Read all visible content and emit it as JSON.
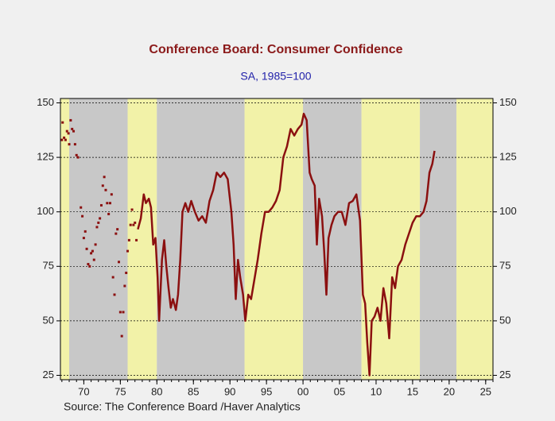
{
  "chart_data": {
    "type": "line",
    "title": "Conference Board: Consumer Confidence",
    "subtitle": "SA, 1985=100",
    "source": "Source:  The Conference Board /Haver Analytics",
    "xlim": [
      1966.8,
      2026
    ],
    "ylim": [
      23,
      152
    ],
    "xticks": [
      {
        "value": 1970,
        "label": "70"
      },
      {
        "value": 1975,
        "label": "75"
      },
      {
        "value": 1980,
        "label": "80"
      },
      {
        "value": 1985,
        "label": "85"
      },
      {
        "value": 1990,
        "label": "90"
      },
      {
        "value": 1995,
        "label": "95"
      },
      {
        "value": 2000,
        "label": "00"
      },
      {
        "value": 2005,
        "label": "05"
      },
      {
        "value": 2010,
        "label": "10"
      },
      {
        "value": 2015,
        "label": "15"
      },
      {
        "value": 2020,
        "label": "20"
      },
      {
        "value": 2025,
        "label": "25"
      }
    ],
    "yticks": [
      25,
      50,
      75,
      100,
      125,
      150
    ],
    "grid": true,
    "bands": [
      {
        "x0": 1966.8,
        "x1": 1968,
        "color": "#f2f2a8"
      },
      {
        "x0": 1968,
        "x1": 1976,
        "color": "#c8c8c8"
      },
      {
        "x0": 1976,
        "x1": 1980,
        "color": "#f2f2a8"
      },
      {
        "x0": 1980,
        "x1": 1992,
        "color": "#c8c8c8"
      },
      {
        "x0": 1992,
        "x1": 2000,
        "color": "#f2f2a8"
      },
      {
        "x0": 2000,
        "x1": 2008,
        "color": "#c8c8c8"
      },
      {
        "x0": 2008,
        "x1": 2016,
        "color": "#f2f2a8"
      },
      {
        "x0": 2016,
        "x1": 2021,
        "color": "#c8c8c8"
      },
      {
        "x0": 2021,
        "x1": 2026,
        "color": "#f2f2a8"
      }
    ],
    "series": [
      {
        "mode": "markers",
        "color": "#8b1010",
        "x": [
          1967.0,
          1967.1,
          1967.3,
          1967.5,
          1967.7,
          1967.9,
          1968.0,
          1968.2,
          1968.4,
          1968.6,
          1968.8,
          1969.0,
          1969.2,
          1969.6,
          1969.8,
          1970.0,
          1970.2,
          1970.4,
          1970.6,
          1970.8,
          1971.0,
          1971.2,
          1971.4,
          1971.6,
          1971.8,
          1972.0,
          1972.2,
          1972.4,
          1972.6,
          1972.8,
          1973.0,
          1973.2,
          1973.4,
          1973.6,
          1973.8,
          1974.0,
          1974.2,
          1974.4,
          1974.6,
          1974.8,
          1975.0,
          1975.2,
          1975.4,
          1975.6,
          1975.8,
          1976.0,
          1976.2,
          1976.4,
          1976.6,
          1976.8,
          1977.0,
          1977.2
        ],
        "values": [
          133,
          141,
          134,
          133,
          137,
          136,
          131,
          142,
          138,
          137,
          131,
          126,
          125,
          102,
          98,
          88,
          91,
          83,
          76,
          75,
          81,
          82,
          78,
          85,
          93,
          95,
          97,
          103,
          112,
          116,
          110,
          104,
          99,
          104,
          108,
          70,
          62,
          90,
          92,
          77,
          54,
          43,
          54,
          66,
          72,
          82,
          87,
          94,
          101,
          94,
          95,
          87
        ]
      },
      {
        "mode": "line",
        "color": "#8b1010",
        "x": [
          1977.4,
          1977.8,
          1978.2,
          1978.5,
          1978.9,
          1979.2,
          1979.5,
          1979.8,
          1980.1,
          1980.3,
          1980.7,
          1981.0,
          1981.3,
          1981.6,
          1981.9,
          1982.2,
          1982.6,
          1982.9,
          1983.2,
          1983.5,
          1983.9,
          1984.3,
          1984.7,
          1985.2,
          1985.7,
          1986.2,
          1986.7,
          1987.2,
          1987.7,
          1988.2,
          1988.7,
          1989.2,
          1989.7,
          1990.2,
          1990.5,
          1990.8,
          1991.1,
          1991.4,
          1991.8,
          1992.1,
          1992.5,
          1992.9,
          1993.3,
          1993.8,
          1994.3,
          1994.8,
          1995.3,
          1995.8,
          1996.3,
          1996.8,
          1997.3,
          1997.8,
          1998.3,
          1998.8,
          1999.3,
          1999.8,
          2000.1,
          2000.5,
          2000.9,
          2001.2,
          2001.6,
          2001.9,
          2002.2,
          2002.6,
          2002.9,
          2003.2,
          2003.5,
          2003.9,
          2004.3,
          2004.8,
          2005.3,
          2005.8,
          2006.3,
          2006.8,
          2007.3,
          2007.8,
          2008.2,
          2008.5,
          2008.8,
          2009.1,
          2009.4,
          2009.8,
          2010.2,
          2010.6,
          2011.0,
          2011.4,
          2011.8,
          2012.2,
          2012.6,
          2013.0,
          2013.5,
          2014.0,
          2014.5,
          2015.0,
          2015.5,
          2016.0,
          2016.5,
          2016.9,
          2017.3,
          2017.7,
          2018.0
        ],
        "values": [
          92,
          97,
          108,
          104,
          106,
          102,
          85,
          88,
          70,
          50,
          78,
          87,
          75,
          65,
          56,
          60,
          55,
          62,
          78,
          100,
          104,
          100,
          105,
          100,
          96,
          98,
          95,
          105,
          110,
          118,
          116,
          118,
          115,
          100,
          85,
          60,
          78,
          70,
          62,
          50,
          62,
          60,
          68,
          78,
          90,
          100,
          100,
          102,
          105,
          110,
          125,
          130,
          138,
          135,
          138,
          140,
          145,
          142,
          118,
          115,
          112,
          85,
          106,
          98,
          82,
          62,
          88,
          94,
          98,
          100,
          100,
          94,
          104,
          105,
          108,
          96,
          62,
          58,
          40,
          25,
          50,
          52,
          56,
          50,
          65,
          58,
          42,
          70,
          65,
          75,
          78,
          85,
          90,
          95,
          98,
          98,
          100,
          105,
          118,
          122,
          128
        ]
      }
    ]
  }
}
